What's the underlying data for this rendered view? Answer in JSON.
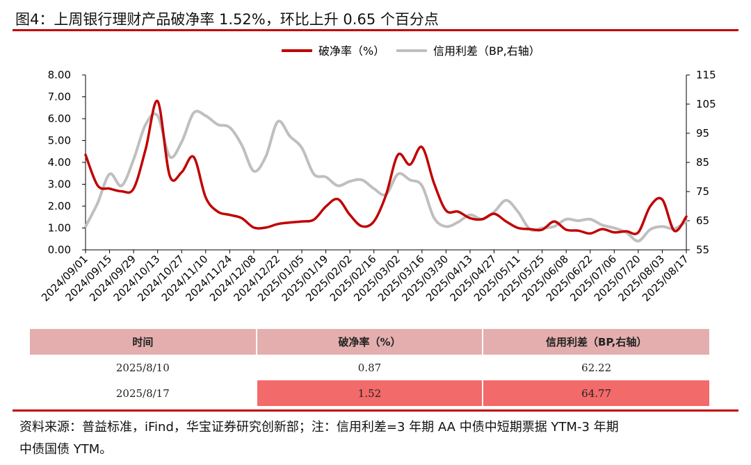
{
  "header": {
    "title": "图4：上周银行理财产品破净率 1.52%，环比上升 0.65 个百分点"
  },
  "chart_data": {
    "type": "line",
    "legend_position": "top-center",
    "grid": false,
    "x_ticks": [
      "2024/09/01",
      "2024/09/15",
      "2024/09/29",
      "2024/10/13",
      "2024/10/27",
      "2024/11/10",
      "2024/11/24",
      "2024/12/08",
      "2024/12/22",
      "2025/01/05",
      "2025/01/19",
      "2025/02/02",
      "2025/02/16",
      "2025/03/02",
      "2025/03/16",
      "2025/03/30",
      "2025/04/13",
      "2025/04/27",
      "2025/05/11",
      "2025/05/25",
      "2025/06/08",
      "2025/06/22",
      "2025/07/06",
      "2025/07/20",
      "2025/08/03",
      "2025/08/17"
    ],
    "x": [
      "2024/09/01",
      "2024/09/08",
      "2024/09/15",
      "2024/09/22",
      "2024/09/29",
      "2024/10/06",
      "2024/10/13",
      "2024/10/20",
      "2024/10/27",
      "2024/11/03",
      "2024/11/10",
      "2024/11/17",
      "2024/11/24",
      "2024/12/01",
      "2024/12/08",
      "2024/12/15",
      "2024/12/22",
      "2024/12/29",
      "2025/01/05",
      "2025/01/12",
      "2025/01/19",
      "2025/01/26",
      "2025/02/02",
      "2025/02/09",
      "2025/02/16",
      "2025/02/23",
      "2025/03/02",
      "2025/03/09",
      "2025/03/16",
      "2025/03/23",
      "2025/03/30",
      "2025/04/06",
      "2025/04/13",
      "2025/04/20",
      "2025/04/27",
      "2025/05/04",
      "2025/05/11",
      "2025/05/18",
      "2025/05/25",
      "2025/06/01",
      "2025/06/08",
      "2025/06/15",
      "2025/06/22",
      "2025/06/29",
      "2025/07/06",
      "2025/07/13",
      "2025/07/20",
      "2025/07/27",
      "2025/08/03",
      "2025/08/10",
      "2025/08/17"
    ],
    "y_left": {
      "ticks": [
        "8.00",
        "7.00",
        "6.00",
        "5.00",
        "4.00",
        "3.00",
        "2.00",
        "1.00",
        "0.00"
      ],
      "range": [
        0,
        8
      ]
    },
    "y_right": {
      "ticks": [
        "115",
        "105",
        "95",
        "85",
        "75",
        "65",
        "55"
      ],
      "range": [
        55,
        115
      ]
    },
    "series": [
      {
        "name": "破净率（%）",
        "color": "#c00000",
        "axis": "left",
        "values": [
          4.35,
          2.95,
          2.8,
          2.68,
          2.8,
          4.6,
          6.8,
          3.4,
          3.55,
          4.25,
          2.4,
          1.75,
          1.6,
          1.45,
          1.02,
          1.02,
          1.18,
          1.25,
          1.3,
          1.38,
          1.98,
          2.32,
          1.6,
          1.08,
          1.3,
          2.5,
          4.35,
          3.9,
          4.7,
          3.05,
          1.8,
          1.75,
          1.45,
          1.4,
          1.65,
          1.3,
          1.0,
          0.95,
          0.92,
          1.3,
          0.92,
          0.88,
          0.75,
          0.95,
          0.8,
          0.85,
          0.8,
          2.0,
          2.3,
          0.87,
          1.52
        ]
      },
      {
        "name": "信用利差（BP,右轴）",
        "color": "#bfbfbf",
        "axis": "right",
        "values": [
          63.0,
          71.0,
          81.0,
          77.0,
          86.0,
          98.0,
          101.0,
          87.0,
          92.0,
          102.0,
          101.0,
          98.0,
          97.0,
          91.0,
          82.0,
          87.0,
          99.0,
          94.0,
          90.0,
          81.0,
          80.0,
          77.0,
          78.5,
          79.0,
          76.0,
          74.0,
          81.0,
          79.0,
          77.0,
          66.0,
          63.0,
          64.5,
          67.0,
          65.5,
          68.0,
          72.0,
          68.0,
          62.0,
          62.5,
          63.0,
          65.5,
          65.0,
          65.5,
          63.5,
          62.5,
          61.0,
          58.0,
          62.0,
          63.0,
          62.22,
          64.77
        ]
      }
    ]
  },
  "table": {
    "headers": [
      "时间",
      "破净率（%）",
      "信用利差（BP,右轴）"
    ],
    "rows": [
      [
        "2025/8/10",
        "0.87",
        "62.22"
      ],
      [
        "2025/8/17",
        "1.52",
        "64.77"
      ]
    ]
  },
  "footer": {
    "line1": "资料来源：普益标准，iFind，华宝证券研究创新部；注：信用利差=3 年期 AA 中债中短期票据 YTM-3 年期",
    "line2": "中债国债 YTM。"
  }
}
